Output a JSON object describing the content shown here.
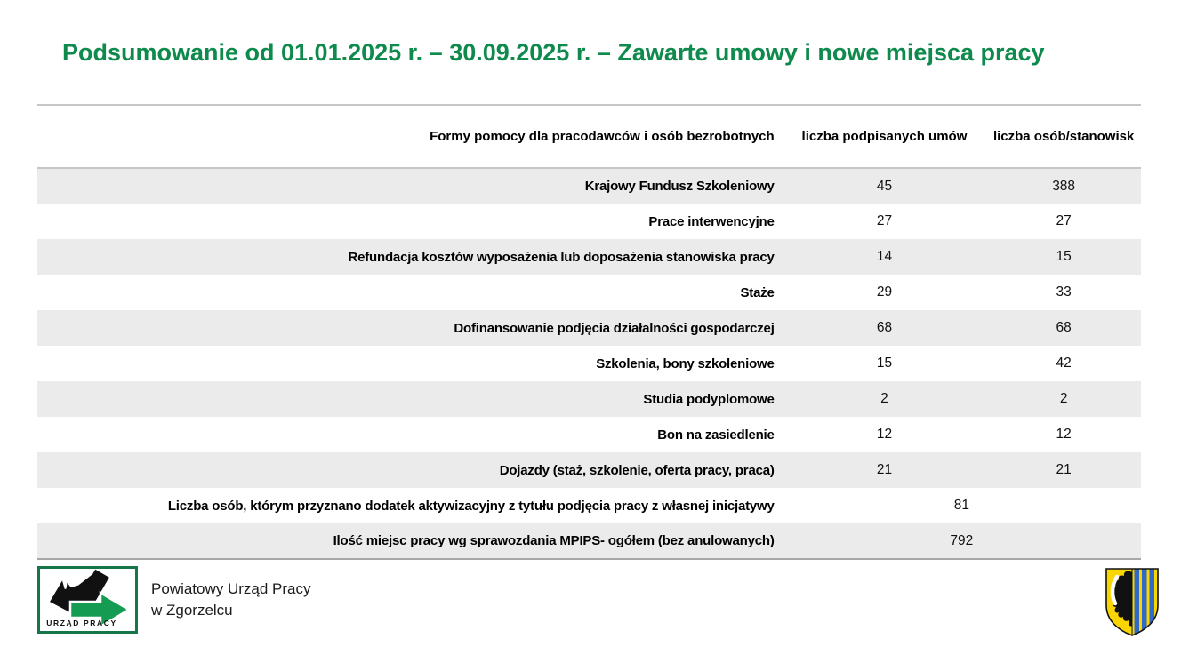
{
  "title": "Podsumowanie od 01.01.2025 r. – 30.09.2025 r. – Zawarte umowy i nowe miejsca pracy",
  "table": {
    "headers": {
      "col1": "Formy pomocy dla pracodawców i osób bezrobotnych",
      "col2": "liczba podpisanych umów",
      "col3": "liczba osób/stanowisk"
    },
    "rows": [
      {
        "label": "Krajowy Fundusz Szkoleniowy",
        "umowy": "45",
        "osoby": "388"
      },
      {
        "label": "Prace interwencyjne",
        "umowy": "27",
        "osoby": "27"
      },
      {
        "label": "Refundacja kosztów wyposażenia lub doposażenia stanowiska pracy",
        "umowy": "14",
        "osoby": "15"
      },
      {
        "label": "Staże",
        "umowy": "29",
        "osoby": "33"
      },
      {
        "label": "Dofinansowanie podjęcia działalności gospodarczej",
        "umowy": "68",
        "osoby": "68"
      },
      {
        "label": "Szkolenia, bony szkoleniowe",
        "umowy": "15",
        "osoby": "42"
      },
      {
        "label": "Studia podyplomowe",
        "umowy": "2",
        "osoby": "2"
      },
      {
        "label": "Bon na zasiedlenie",
        "umowy": "12",
        "osoby": "12"
      },
      {
        "label": "Dojazdy (staż, szkolenie, oferta pracy, praca)",
        "umowy": "21",
        "osoby": "21"
      },
      {
        "label": "Liczba osób, którym przyznano dodatek aktywizacyjny z tytułu podjęcia pracy z własnej inicjatywy",
        "merged": "81"
      },
      {
        "label": "Ilość miejsc pracy wg sprawozdania MPIPS- ogółem (bez anulowanych)",
        "merged": "792"
      }
    ]
  },
  "footer": {
    "logo_label": "URZĄD PRACY",
    "organization_line1": "Powiatowy Urząd Pracy",
    "organization_line2": "w Zgorzelcu"
  },
  "colors": {
    "title_green": "#0f8a4d",
    "row_stripe": "#ebebeb",
    "table_border_top": "#c6c6c6",
    "table_border_bottom": "#a8a8a8",
    "logo_green": "#169c52",
    "logo_border_green": "#15764a",
    "herb_yellow": "#f8d503",
    "herb_blue": "#3069c6"
  }
}
